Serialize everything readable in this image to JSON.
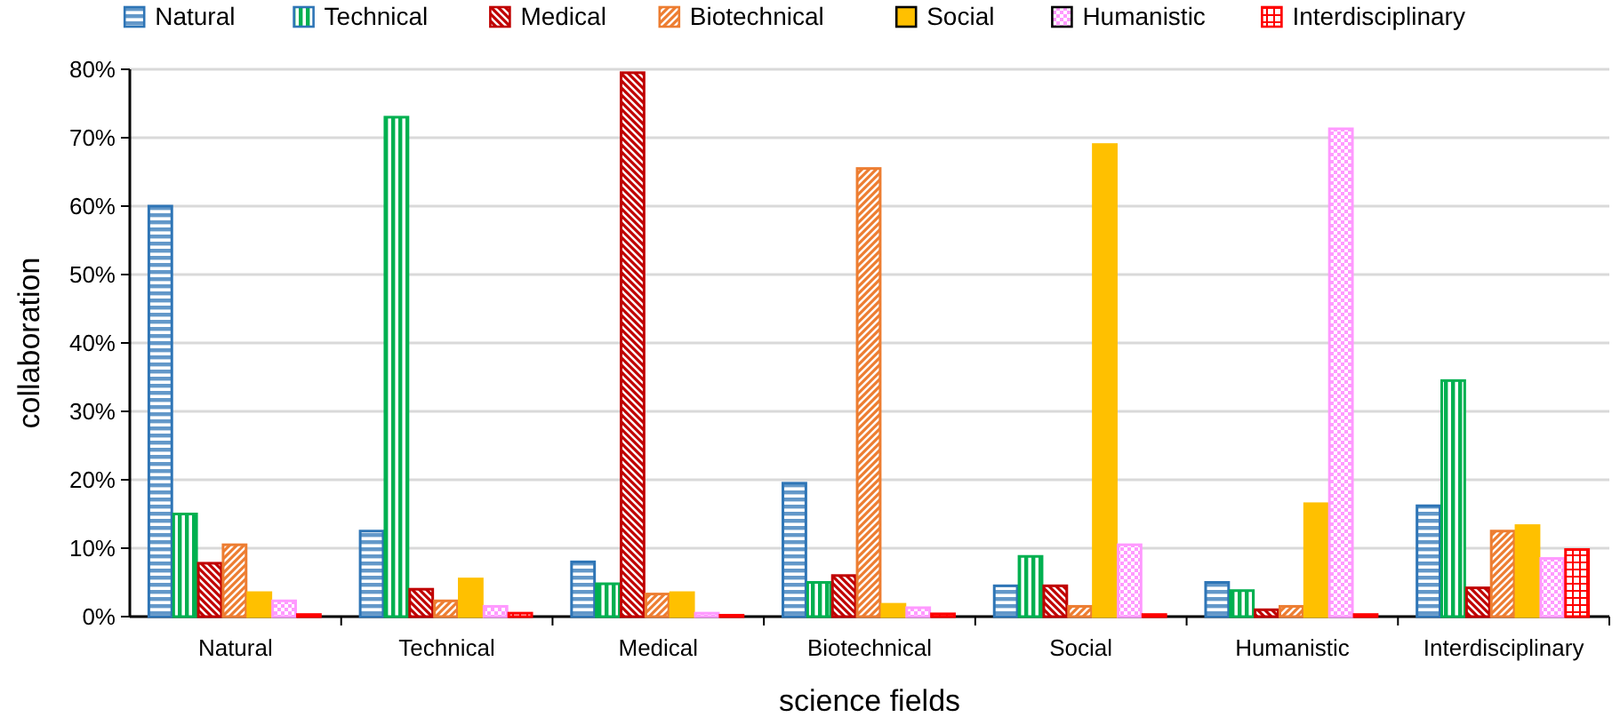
{
  "chart_data": {
    "type": "bar",
    "xlabel": "science fields",
    "ylabel": "collaboration",
    "categories": [
      "Natural",
      "Technical",
      "Medical",
      "Biotechnical",
      "Social",
      "Humanistic",
      "Interdisciplinary"
    ],
    "series": [
      {
        "name": "Natural",
        "color": "#2e75b6",
        "values": [
          60,
          12.5,
          8,
          19.5,
          4.5,
          5,
          16.2
        ]
      },
      {
        "name": "Technical",
        "color": "#00b050",
        "values": [
          15,
          73,
          4.8,
          5,
          8.8,
          3.8,
          34.5
        ]
      },
      {
        "name": "Medical",
        "color": "#c00000",
        "values": [
          7.8,
          4,
          79.5,
          6,
          4.5,
          1,
          4.2
        ]
      },
      {
        "name": "Biotechnical",
        "color": "#ed7d31",
        "values": [
          10.5,
          2.3,
          3.3,
          65.5,
          1.5,
          1.5,
          12.5
        ]
      },
      {
        "name": "Social",
        "color": "#ffc000",
        "values": [
          3.5,
          5.5,
          3.5,
          1.8,
          69,
          16.5,
          13.3
        ]
      },
      {
        "name": "Humanistic",
        "color": "#ff99ff",
        "values": [
          2.3,
          1.5,
          0.5,
          1.3,
          10.5,
          71.3,
          8.5
        ]
      },
      {
        "name": "Interdisciplinary",
        "color": "#ff0000",
        "values": [
          0.3,
          0.5,
          0.2,
          0.4,
          0.3,
          0.3,
          9.8
        ]
      }
    ],
    "ylim": [
      0,
      80
    ],
    "yticks": [
      {
        "value": 0,
        "label": "0%"
      },
      {
        "value": 10,
        "label": "10%"
      },
      {
        "value": 20,
        "label": "20%"
      },
      {
        "value": 30,
        "label": "30%"
      },
      {
        "value": 40,
        "label": "40%"
      },
      {
        "value": 50,
        "label": "50%"
      },
      {
        "value": 60,
        "label": "60%"
      },
      {
        "value": 70,
        "label": "70%"
      },
      {
        "value": 80,
        "label": "80%"
      }
    ],
    "grid": "y",
    "legend": "top"
  }
}
